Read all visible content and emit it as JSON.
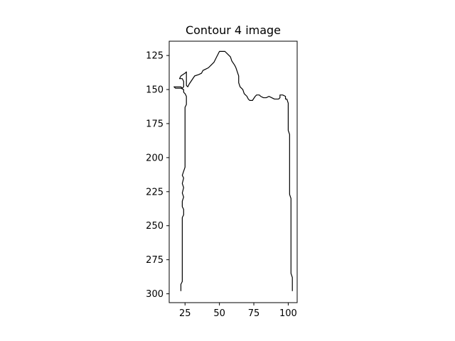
{
  "chart_data": {
    "type": "line",
    "title": "Contour 4 image",
    "xlabel": "",
    "ylabel": "",
    "xlim": [
      13.5,
      106.5
    ],
    "ylim": [
      306.5,
      114.5
    ],
    "y_inverted": true,
    "grid": false,
    "x_ticks": [
      25,
      50,
      75,
      100
    ],
    "y_ticks": [
      125,
      150,
      175,
      200,
      225,
      250,
      275,
      300
    ],
    "series": [
      {
        "color": "#000000",
        "points": [
          [
            22,
            298
          ],
          [
            22,
            293
          ],
          [
            23,
            291
          ],
          [
            23,
            244
          ],
          [
            24,
            242
          ],
          [
            24,
            238
          ],
          [
            23,
            236
          ],
          [
            23,
            232
          ],
          [
            24,
            229
          ],
          [
            23,
            226
          ],
          [
            24,
            222
          ],
          [
            23,
            219
          ],
          [
            24,
            215
          ],
          [
            23,
            213
          ],
          [
            24,
            210
          ],
          [
            25,
            207
          ],
          [
            25,
            163
          ],
          [
            26,
            161
          ],
          [
            26,
            155
          ],
          [
            25,
            153
          ],
          [
            24,
            152
          ],
          [
            24,
            150
          ],
          [
            22,
            149
          ],
          [
            18,
            149
          ],
          [
            17,
            148
          ],
          [
            18,
            148
          ],
          [
            22,
            148
          ],
          [
            23,
            149
          ],
          [
            24,
            148
          ],
          [
            24,
            144
          ],
          [
            23,
            142
          ],
          [
            21,
            142
          ],
          [
            22,
            140
          ],
          [
            25,
            138
          ],
          [
            26,
            137
          ],
          [
            26,
            140
          ],
          [
            26,
            147
          ],
          [
            27,
            148
          ],
          [
            28,
            146
          ],
          [
            30,
            143
          ],
          [
            32,
            140
          ],
          [
            35,
            139
          ],
          [
            37,
            138
          ],
          [
            38,
            136
          ],
          [
            40,
            135
          ],
          [
            42,
            134
          ],
          [
            44,
            132
          ],
          [
            46,
            130
          ],
          [
            47,
            128
          ],
          [
            48,
            126
          ],
          [
            49,
            124
          ],
          [
            50,
            122
          ],
          [
            52,
            122
          ],
          [
            54,
            122
          ],
          [
            56,
            124
          ],
          [
            58,
            126
          ],
          [
            59,
            129
          ],
          [
            61,
            132
          ],
          [
            62,
            134
          ],
          [
            63,
            137
          ],
          [
            64,
            140
          ],
          [
            64,
            145
          ],
          [
            65,
            148
          ],
          [
            67,
            150
          ],
          [
            68,
            153
          ],
          [
            70,
            155
          ],
          [
            71,
            157
          ],
          [
            72,
            158
          ],
          [
            74,
            158
          ],
          [
            76,
            155
          ],
          [
            77,
            154
          ],
          [
            79,
            154
          ],
          [
            80,
            155
          ],
          [
            82,
            156
          ],
          [
            84,
            156
          ],
          [
            86,
            155
          ],
          [
            88,
            156
          ],
          [
            90,
            157
          ],
          [
            93,
            157
          ],
          [
            94,
            156
          ],
          [
            94,
            154
          ],
          [
            96,
            154
          ],
          [
            98,
            155
          ],
          [
            98,
            157
          ],
          [
            99,
            157
          ],
          [
            100,
            160
          ],
          [
            100,
            180
          ],
          [
            101,
            183
          ],
          [
            101,
            227
          ],
          [
            102,
            230
          ],
          [
            102,
            285
          ],
          [
            103,
            288
          ],
          [
            103,
            298
          ]
        ]
      }
    ]
  }
}
